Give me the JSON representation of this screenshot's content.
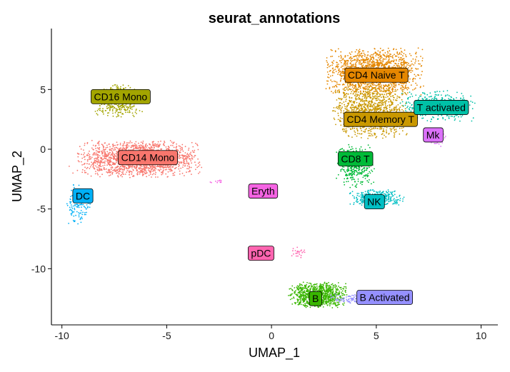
{
  "chart_data": {
    "type": "scatter",
    "title": "seurat_annotations",
    "xlabel": "UMAP_1",
    "ylabel": "UMAP_2",
    "xlim": [
      -10.5,
      10.8
    ],
    "ylim": [
      -14.7,
      9.8
    ],
    "xticks": [
      -10,
      -5,
      0,
      5,
      10
    ],
    "yticks": [
      -10,
      -5,
      0,
      5
    ],
    "grid": false,
    "legend": "none",
    "clusters": [
      {
        "name": "CD14 Mono",
        "color": "#F8766D",
        "label_x": -5.9,
        "label_y": -0.7,
        "blobs": [
          {
            "cx": -6.3,
            "cy": -0.8,
            "sx": 1.8,
            "sy": 0.95,
            "n": 1800
          }
        ]
      },
      {
        "name": "CD16 Mono",
        "color": "#A3A500",
        "label_x": -7.2,
        "label_y": 4.4,
        "blobs": [
          {
            "cx": -7.3,
            "cy": 4.0,
            "sx": 0.7,
            "sy": 0.85,
            "n": 420
          }
        ]
      },
      {
        "name": "DC",
        "color": "#00B0F6",
        "label_x": -9.0,
        "label_y": -3.9,
        "blobs": [
          {
            "cx": -9.2,
            "cy": -4.6,
            "sx": 0.35,
            "sy": 1.0,
            "n": 140
          }
        ]
      },
      {
        "name": "CD4 Naive T",
        "color": "#E58700",
        "label_x": 5.0,
        "label_y": 6.2,
        "blobs": [
          {
            "cx": 4.9,
            "cy": 6.5,
            "sx": 1.4,
            "sy": 1.2,
            "n": 1500
          }
        ]
      },
      {
        "name": "CD4 Memory T",
        "color": "#C99800",
        "label_x": 5.2,
        "label_y": 2.5,
        "blobs": [
          {
            "cx": 4.7,
            "cy": 3.2,
            "sx": 1.1,
            "sy": 1.4,
            "n": 1100
          }
        ]
      },
      {
        "name": "T activated",
        "color": "#00C1A7",
        "label_x": 8.1,
        "label_y": 3.5,
        "blobs": [
          {
            "cx": 7.9,
            "cy": 3.6,
            "sx": 1.1,
            "sy": 0.8,
            "n": 380
          }
        ]
      },
      {
        "name": "Mk",
        "color": "#DC71FA",
        "label_x": 7.7,
        "label_y": 1.2,
        "blobs": [
          {
            "cx": 7.9,
            "cy": 0.9,
            "sx": 0.3,
            "sy": 0.4,
            "n": 50
          }
        ]
      },
      {
        "name": "CD8 T",
        "color": "#00BA38",
        "label_x": 4.0,
        "label_y": -0.8,
        "blobs": [
          {
            "cx": 4.0,
            "cy": -1.4,
            "sx": 0.55,
            "sy": 1.1,
            "n": 380
          }
        ]
      },
      {
        "name": "NK",
        "color": "#00BFC4",
        "label_x": 4.9,
        "label_y": -4.4,
        "blobs": [
          {
            "cx": 5.0,
            "cy": -4.1,
            "sx": 0.8,
            "sy": 0.45,
            "n": 340
          }
        ]
      },
      {
        "name": "Eryth",
        "color": "#F564E3",
        "label_x": -0.4,
        "label_y": -3.5,
        "blobs": [
          {
            "cx": -2.6,
            "cy": -2.7,
            "sx": 0.25,
            "sy": 0.08,
            "n": 12
          }
        ]
      },
      {
        "name": "pDC",
        "color": "#FF64B0",
        "label_x": -0.5,
        "label_y": -8.7,
        "blobs": [
          {
            "cx": 1.3,
            "cy": -8.6,
            "sx": 0.25,
            "sy": 0.3,
            "n": 25
          }
        ]
      },
      {
        "name": "B",
        "color": "#39B600",
        "label_x": 2.1,
        "label_y": -12.5,
        "blobs": [
          {
            "cx": 2.2,
            "cy": -12.2,
            "sx": 0.85,
            "sy": 0.65,
            "n": 900
          }
        ]
      },
      {
        "name": "B Activated",
        "color": "#9590FF",
        "label_x": 5.4,
        "label_y": -12.4,
        "blobs": [
          {
            "cx": 4.2,
            "cy": -12.5,
            "sx": 0.9,
            "sy": 0.25,
            "n": 140
          }
        ]
      }
    ]
  }
}
